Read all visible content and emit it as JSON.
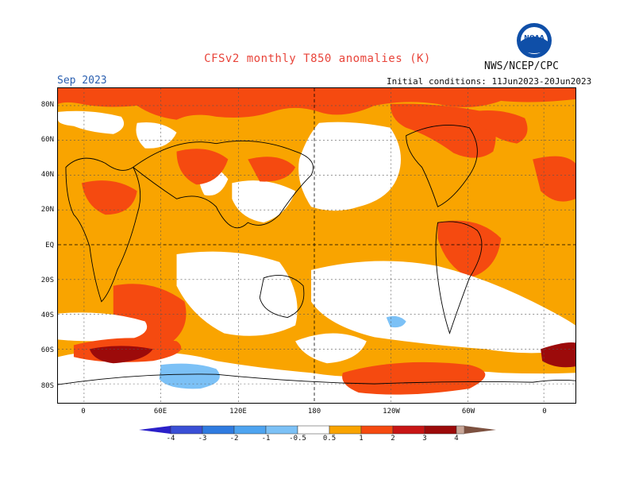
{
  "header": {
    "title": "CFSv2 monthly T850 anomalies (K)",
    "agency": "NWS/NCEP/CPC",
    "month": "Sep 2023",
    "initial_conditions": "Initial conditions: 11Jun2023-20Jun2023"
  },
  "logo": {
    "icon": "noaa-logo-icon",
    "text": "NOAA"
  },
  "axes": {
    "lat_labels": [
      "80N",
      "60N",
      "40N",
      "20N",
      "EQ",
      "20S",
      "40S",
      "60S",
      "80S"
    ],
    "lon_labels": [
      "0",
      "60E",
      "120E",
      "180",
      "120W",
      "60W",
      "0"
    ]
  },
  "legend": {
    "labels": [
      "-4",
      "-3",
      "-2",
      "-1",
      "-0.5",
      "0.5",
      "1",
      "2",
      "3",
      "4"
    ],
    "colors": [
      "#2b20c9",
      "#3a4fd6",
      "#2f7be0",
      "#4ea4f0",
      "#7cc1f6",
      "#ffffff",
      "#f9a400",
      "#f54a10",
      "#c81515",
      "#9c0a0a",
      "#c9a697",
      "#7d5140"
    ]
  },
  "map_colors": {
    "background": "#f9a400",
    "moderate_warm": "#f54a10",
    "strong_warm": "#9c0a0a",
    "neutral": "#ffffff",
    "weak_cool": "#7cc1f6",
    "cool": "#4ea4f0"
  }
}
